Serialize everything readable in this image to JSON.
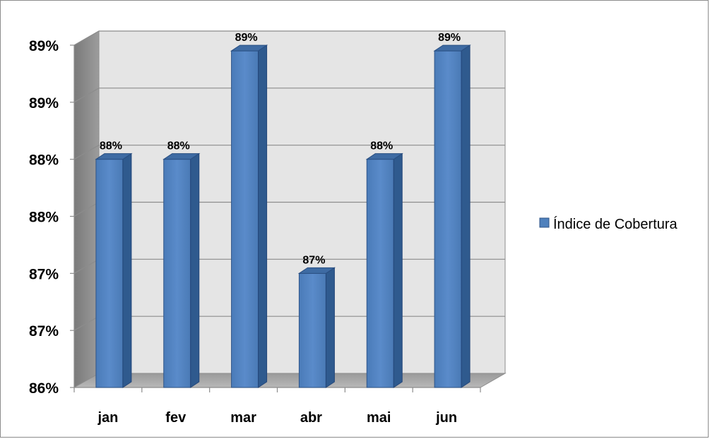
{
  "chart_data": {
    "type": "bar",
    "categories": [
      "jan",
      "fev",
      "mar",
      "abr",
      "mai",
      "jun"
    ],
    "series": [
      {
        "name": "Índice de Cobertura",
        "values": [
          0.88,
          0.88,
          0.89,
          0.87,
          0.88,
          0.89
        ],
        "color": "#4f81bd"
      }
    ],
    "data_labels": [
      "88%",
      "88%",
      "89%",
      "87%",
      "88%",
      "89%"
    ],
    "bar_levels": [
      0.88,
      0.88,
      0.8895,
      0.87,
      0.88,
      0.8895
    ],
    "y_ticks": [
      "86%",
      "87%",
      "87%",
      "88%",
      "88%",
      "89%",
      "89%"
    ],
    "ylim": [
      0.86,
      0.89
    ],
    "title": "",
    "xlabel": "",
    "ylabel": "",
    "grid": true,
    "legend_position": "right",
    "style": "3d-column"
  }
}
